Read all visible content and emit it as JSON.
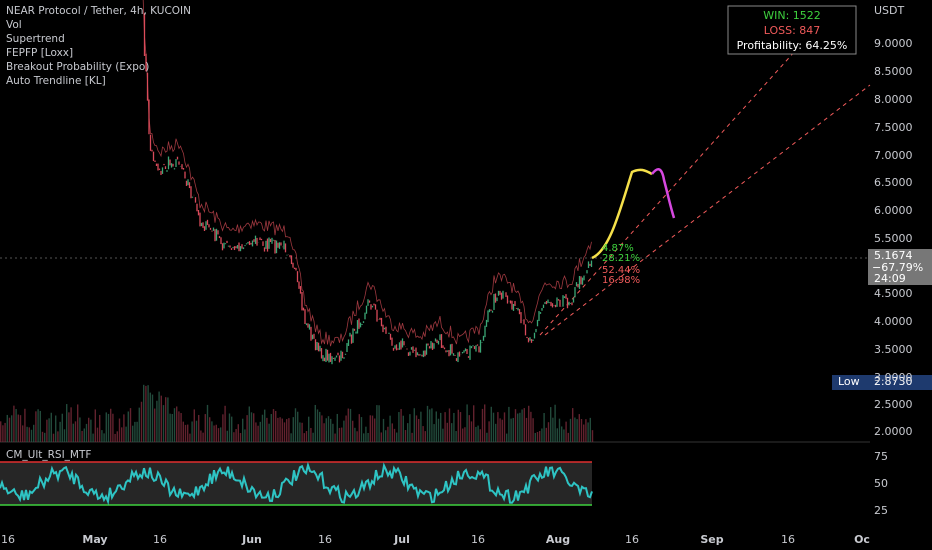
{
  "header": {
    "title": "NEAR Protocol / Tether, 4h, KUCOIN",
    "indicators": [
      "Vol",
      "Supertrend",
      "FEPFP [Loxx]",
      "Breakout Probability (Expo)",
      "Auto Trendline [KL]"
    ]
  },
  "stats": {
    "win": "WIN: 1522",
    "loss": "LOSS: 847",
    "profitability": "Profitability: 64.25%"
  },
  "price_axis": {
    "currency": "USDT",
    "labels": [
      "9.0000",
      "8.5000",
      "8.0000",
      "7.5000",
      "7.0000",
      "6.5000",
      "6.0000",
      "5.5000",
      "4.5000",
      "4.0000",
      "3.5000",
      "3.0000",
      "2.5000",
      "2.0000"
    ],
    "last_price": "5.1674",
    "change": "−67.79%",
    "countdown": "24:09",
    "low_label": "Low",
    "low_value": "2.8730"
  },
  "breakout": [
    "4.87%",
    "28.21%",
    "52.44%",
    "16.98%"
  ],
  "rsi": {
    "name": "CM_Ult_RSI_MTF",
    "labels": [
      "75",
      "50",
      "25"
    ]
  },
  "time_axis": [
    "16",
    "May",
    "16",
    "Jun",
    "16",
    "Jul",
    "16",
    "Aug",
    "16",
    "Sep",
    "16",
    "Oc"
  ]
}
